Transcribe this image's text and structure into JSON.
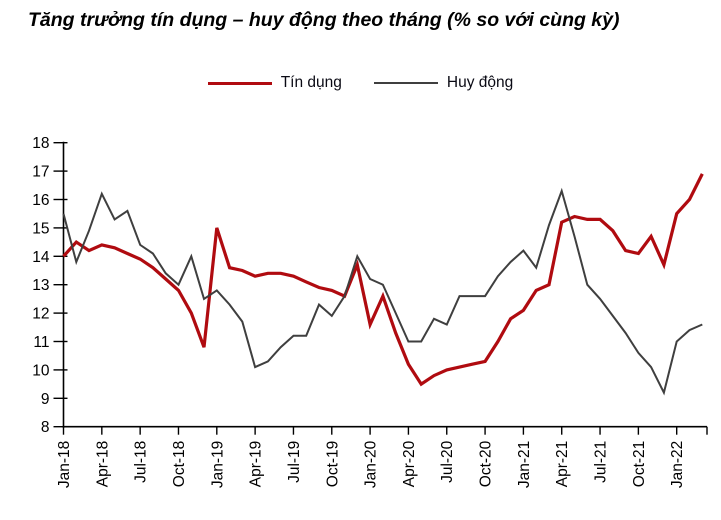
{
  "title": "Tăng trưởng tín dụng – huy động theo tháng (% so với cùng kỳ)",
  "colors": {
    "credit": "#b00b10",
    "deposit": "#3f3f3f",
    "axis": "#000000",
    "background": "#ffffff"
  },
  "legend": [
    {
      "label": "Tín dụng",
      "color": "#b00b10",
      "thickness": 3.2
    },
    {
      "label": "Huy động",
      "color": "#3f3f3f",
      "thickness": 2.0
    }
  ],
  "chart_data": {
    "type": "line",
    "title": "Tăng trưởng tín dụng – huy động theo tháng (% so với cùng kỳ)",
    "xlabel": "",
    "ylabel": "",
    "ylim": [
      8,
      18
    ],
    "ytick_step": 1,
    "grid": false,
    "legend_position": "top",
    "x": [
      "Jan-18",
      "Feb-18",
      "Mar-18",
      "Apr-18",
      "May-18",
      "Jun-18",
      "Jul-18",
      "Aug-18",
      "Sep-18",
      "Oct-18",
      "Nov-18",
      "Dec-18",
      "Jan-19",
      "Feb-19",
      "Mar-19",
      "Apr-19",
      "May-19",
      "Jun-19",
      "Jul-19",
      "Aug-19",
      "Sep-19",
      "Oct-19",
      "Nov-19",
      "Dec-19",
      "Jan-20",
      "Feb-20",
      "Mar-20",
      "Apr-20",
      "May-20",
      "Jun-20",
      "Jul-20",
      "Aug-20",
      "Sep-20",
      "Oct-20",
      "Nov-20",
      "Dec-20",
      "Jan-21",
      "Feb-21",
      "Mar-21",
      "Apr-21",
      "May-21",
      "Jun-21",
      "Jul-21",
      "Aug-21",
      "Sep-21",
      "Oct-21",
      "Nov-21",
      "Dec-21",
      "Jan-22",
      "Feb-22",
      "Mar-22"
    ],
    "x_tick_labels": [
      "Jan-18",
      "Apr-18",
      "Jul-18",
      "Oct-18",
      "Jan-19",
      "Apr-19",
      "Jul-19",
      "Oct-19",
      "Jan-20",
      "Apr-20",
      "Jul-20",
      "Oct-20",
      "Jan-21",
      "Apr-21",
      "Jul-21",
      "Oct-21",
      "Jan-22"
    ],
    "x_tick_interval": 3,
    "series": [
      {
        "name": "Tín dụng",
        "color": "#b00b10",
        "width": 3.2,
        "values": [
          14.0,
          14.5,
          14.2,
          14.4,
          14.3,
          14.1,
          13.9,
          13.6,
          13.2,
          12.8,
          12.0,
          10.8,
          15.0,
          13.6,
          13.5,
          13.3,
          13.4,
          13.4,
          13.3,
          13.1,
          12.9,
          12.8,
          12.6,
          13.7,
          11.6,
          12.6,
          11.3,
          10.2,
          9.5,
          9.8,
          10.0,
          10.1,
          10.2,
          10.3,
          11.0,
          11.8,
          12.1,
          12.8,
          13.0,
          15.2,
          15.4,
          15.3,
          15.3,
          14.9,
          14.2,
          14.1,
          14.7,
          13.7,
          15.5,
          16.0,
          16.9
        ]
      },
      {
        "name": "Huy động",
        "color": "#3f3f3f",
        "width": 2.0,
        "values": [
          15.5,
          13.8,
          14.9,
          16.2,
          15.3,
          15.6,
          14.4,
          14.1,
          13.4,
          13.0,
          14.0,
          12.5,
          12.8,
          12.3,
          11.7,
          10.1,
          10.3,
          10.8,
          11.2,
          11.2,
          12.3,
          11.9,
          12.6,
          14.0,
          13.2,
          13.0,
          12.0,
          11.0,
          11.0,
          11.8,
          11.6,
          12.6,
          12.6,
          12.6,
          13.3,
          13.8,
          14.2,
          13.6,
          15.1,
          16.3,
          14.7,
          13.0,
          12.5,
          11.9,
          11.3,
          10.6,
          10.1,
          9.2,
          11.0,
          11.4,
          11.6
        ]
      }
    ]
  }
}
